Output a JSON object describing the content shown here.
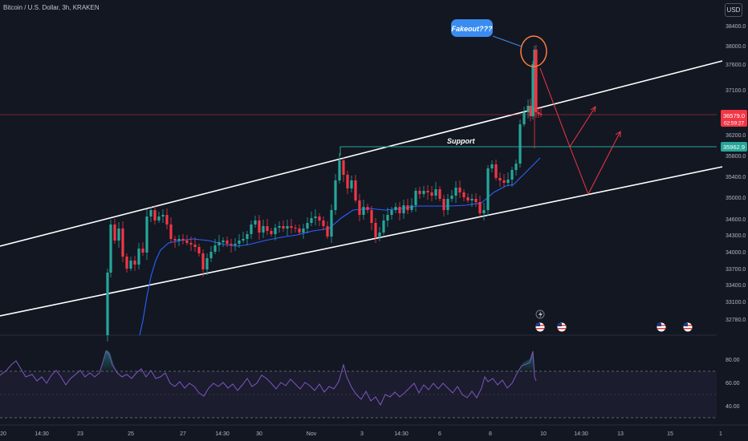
{
  "header": {
    "title": "Bitcoin / U.S. Dollar, 3h, KRAKEN",
    "currency_button": "USD"
  },
  "price_axis": {
    "ticks": [
      "38400.0",
      "38000.0",
      "37600.0",
      "37100.0",
      "36200.0",
      "35800.0",
      "35400.0",
      "35000.0",
      "34600.0",
      "34300.0",
      "34000.0",
      "33700.0",
      "33400.0",
      "33100.0",
      "32780.0"
    ],
    "current_price": "36579.0",
    "countdown": "02:59:27",
    "support_price": "35962.9",
    "current_color": "#f23645",
    "support_color": "#26a69a"
  },
  "rsi_axis": {
    "ticks": [
      "80.00",
      "60.00",
      "40.00"
    ]
  },
  "time_axis": {
    "ticks": [
      "20",
      "14:30",
      "23",
      "25",
      "27",
      "14:30",
      "30",
      "Nov",
      "3",
      "14:30",
      "6",
      "8",
      "10",
      "14:30",
      "13",
      "15",
      "1"
    ]
  },
  "annotations": {
    "callout": "Fakeout???",
    "support_label": "Support",
    "callout_color": "#3a8cf0"
  },
  "icons": {
    "lightning": "lightning-icon",
    "flag": "us-flag-icon"
  }
}
